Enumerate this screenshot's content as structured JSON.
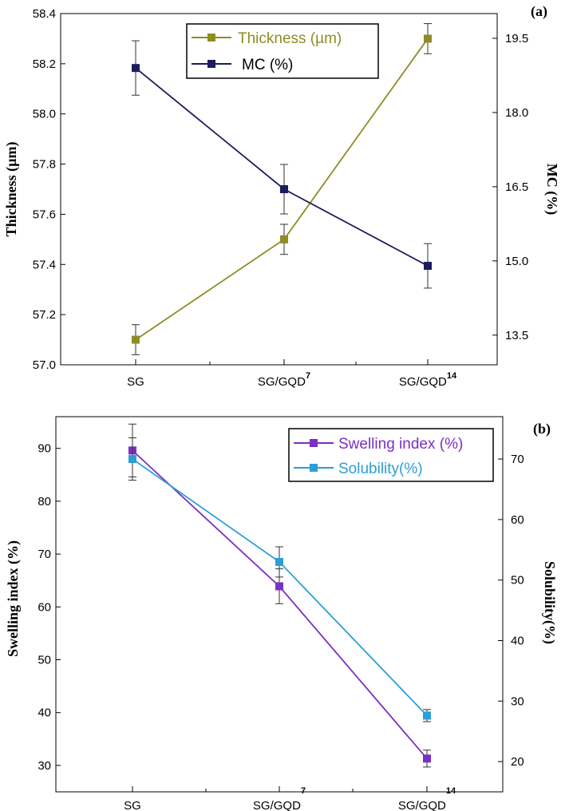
{
  "chart_data": [
    {
      "type": "line",
      "panel_label": "(a)",
      "categories": [
        "SG",
        "SG/GQD",
        "SG/GQD"
      ],
      "category_superscripts": [
        "",
        "7",
        "14"
      ],
      "y_left": {
        "label": "Thickness (µm)",
        "lim": [
          57.0,
          58.4
        ],
        "ticks": [
          "57.0",
          "57.2",
          "57.4",
          "57.6",
          "57.8",
          "58.0",
          "58.2",
          "58.4"
        ]
      },
      "y_right": {
        "label": "MC (%)",
        "lim": [
          12.9,
          20.0
        ],
        "ticks": [
          "13.5",
          "15.0",
          "16.5",
          "18.0",
          "19.5"
        ]
      },
      "series": [
        {
          "name": "Thickness (µm)",
          "axis": "left",
          "color": "#8d8d24",
          "values": [
            57.1,
            57.5,
            58.3
          ],
          "errors": [
            0.06,
            0.06,
            0.06
          ]
        },
        {
          "name": "MC (%)",
          "axis": "right",
          "color": "#1c1c5e",
          "values": [
            18.9,
            16.45,
            14.9
          ],
          "errors": [
            0.55,
            0.5,
            0.45
          ]
        }
      ],
      "legend_position": "top-center"
    },
    {
      "type": "line",
      "panel_label": "(b)",
      "categories": [
        "SG",
        "SG/GQD",
        "SG/GQD"
      ],
      "category_superscripts": [
        "",
        "7",
        "14"
      ],
      "y_left": {
        "label": "Swelling index (%)",
        "lim": [
          25,
          96
        ],
        "ticks": [
          "30",
          "40",
          "50",
          "60",
          "70",
          "80",
          "90"
        ]
      },
      "y_right": {
        "label": "Solubility(%)",
        "lim": [
          15,
          77
        ],
        "ticks": [
          "20",
          "30",
          "40",
          "50",
          "60",
          "70"
        ]
      },
      "series": [
        {
          "name": "Swelling index (%)",
          "axis": "left",
          "color": "#7b2fc5",
          "values": [
            89.6,
            63.9,
            31.3
          ],
          "errors": [
            5.0,
            3.3,
            1.6
          ]
        },
        {
          "name": "Solubility(%)",
          "axis": "right",
          "color": "#2a9fd4",
          "values": [
            70.0,
            53.0,
            27.6
          ],
          "errors": [
            3.5,
            2.5,
            1.0
          ]
        }
      ],
      "legend_position": "top-right"
    }
  ]
}
